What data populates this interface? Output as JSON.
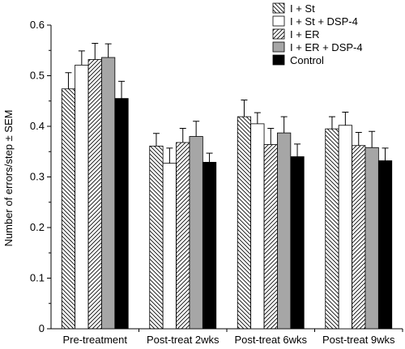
{
  "chart_data": {
    "type": "bar",
    "title": "",
    "xlabel": "",
    "ylabel": "Number of errors/step ± SEM",
    "ylim": [
      0,
      0.6
    ],
    "yticks": [
      "0",
      "0.1",
      "0.2",
      "0.3",
      "0.4",
      "0.5",
      "0.6"
    ],
    "categories": [
      "Pre-treatment",
      "Post-treat 2wks",
      "Post-treat 6wks",
      "Post-treat 9wks"
    ],
    "legend_position": "top-right",
    "series": [
      {
        "name": "I + St",
        "fill": "hatch-back",
        "values": [
          0.474,
          0.361,
          0.419,
          0.395
        ],
        "errors": [
          0.032,
          0.025,
          0.033,
          0.024
        ]
      },
      {
        "name": "I + St + DSP-4",
        "fill": "white",
        "values": [
          0.521,
          0.327,
          0.405,
          0.402
        ],
        "errors": [
          0.028,
          0.03,
          0.022,
          0.026
        ]
      },
      {
        "name": "I + ER",
        "fill": "hatch-fwd",
        "values": [
          0.532,
          0.368,
          0.364,
          0.362
        ],
        "errors": [
          0.032,
          0.028,
          0.032,
          0.026
        ]
      },
      {
        "name": "I + ER + DSP-4",
        "fill": "gray",
        "values": [
          0.536,
          0.38,
          0.387,
          0.358
        ],
        "errors": [
          0.027,
          0.03,
          0.032,
          0.032
        ]
      },
      {
        "name": "Control",
        "fill": "black",
        "values": [
          0.455,
          0.329,
          0.34,
          0.332
        ],
        "errors": [
          0.034,
          0.018,
          0.025,
          0.025
        ]
      }
    ],
    "colors": {
      "gray": "#a6a6a6",
      "black": "#000000",
      "white": "#ffffff"
    }
  }
}
